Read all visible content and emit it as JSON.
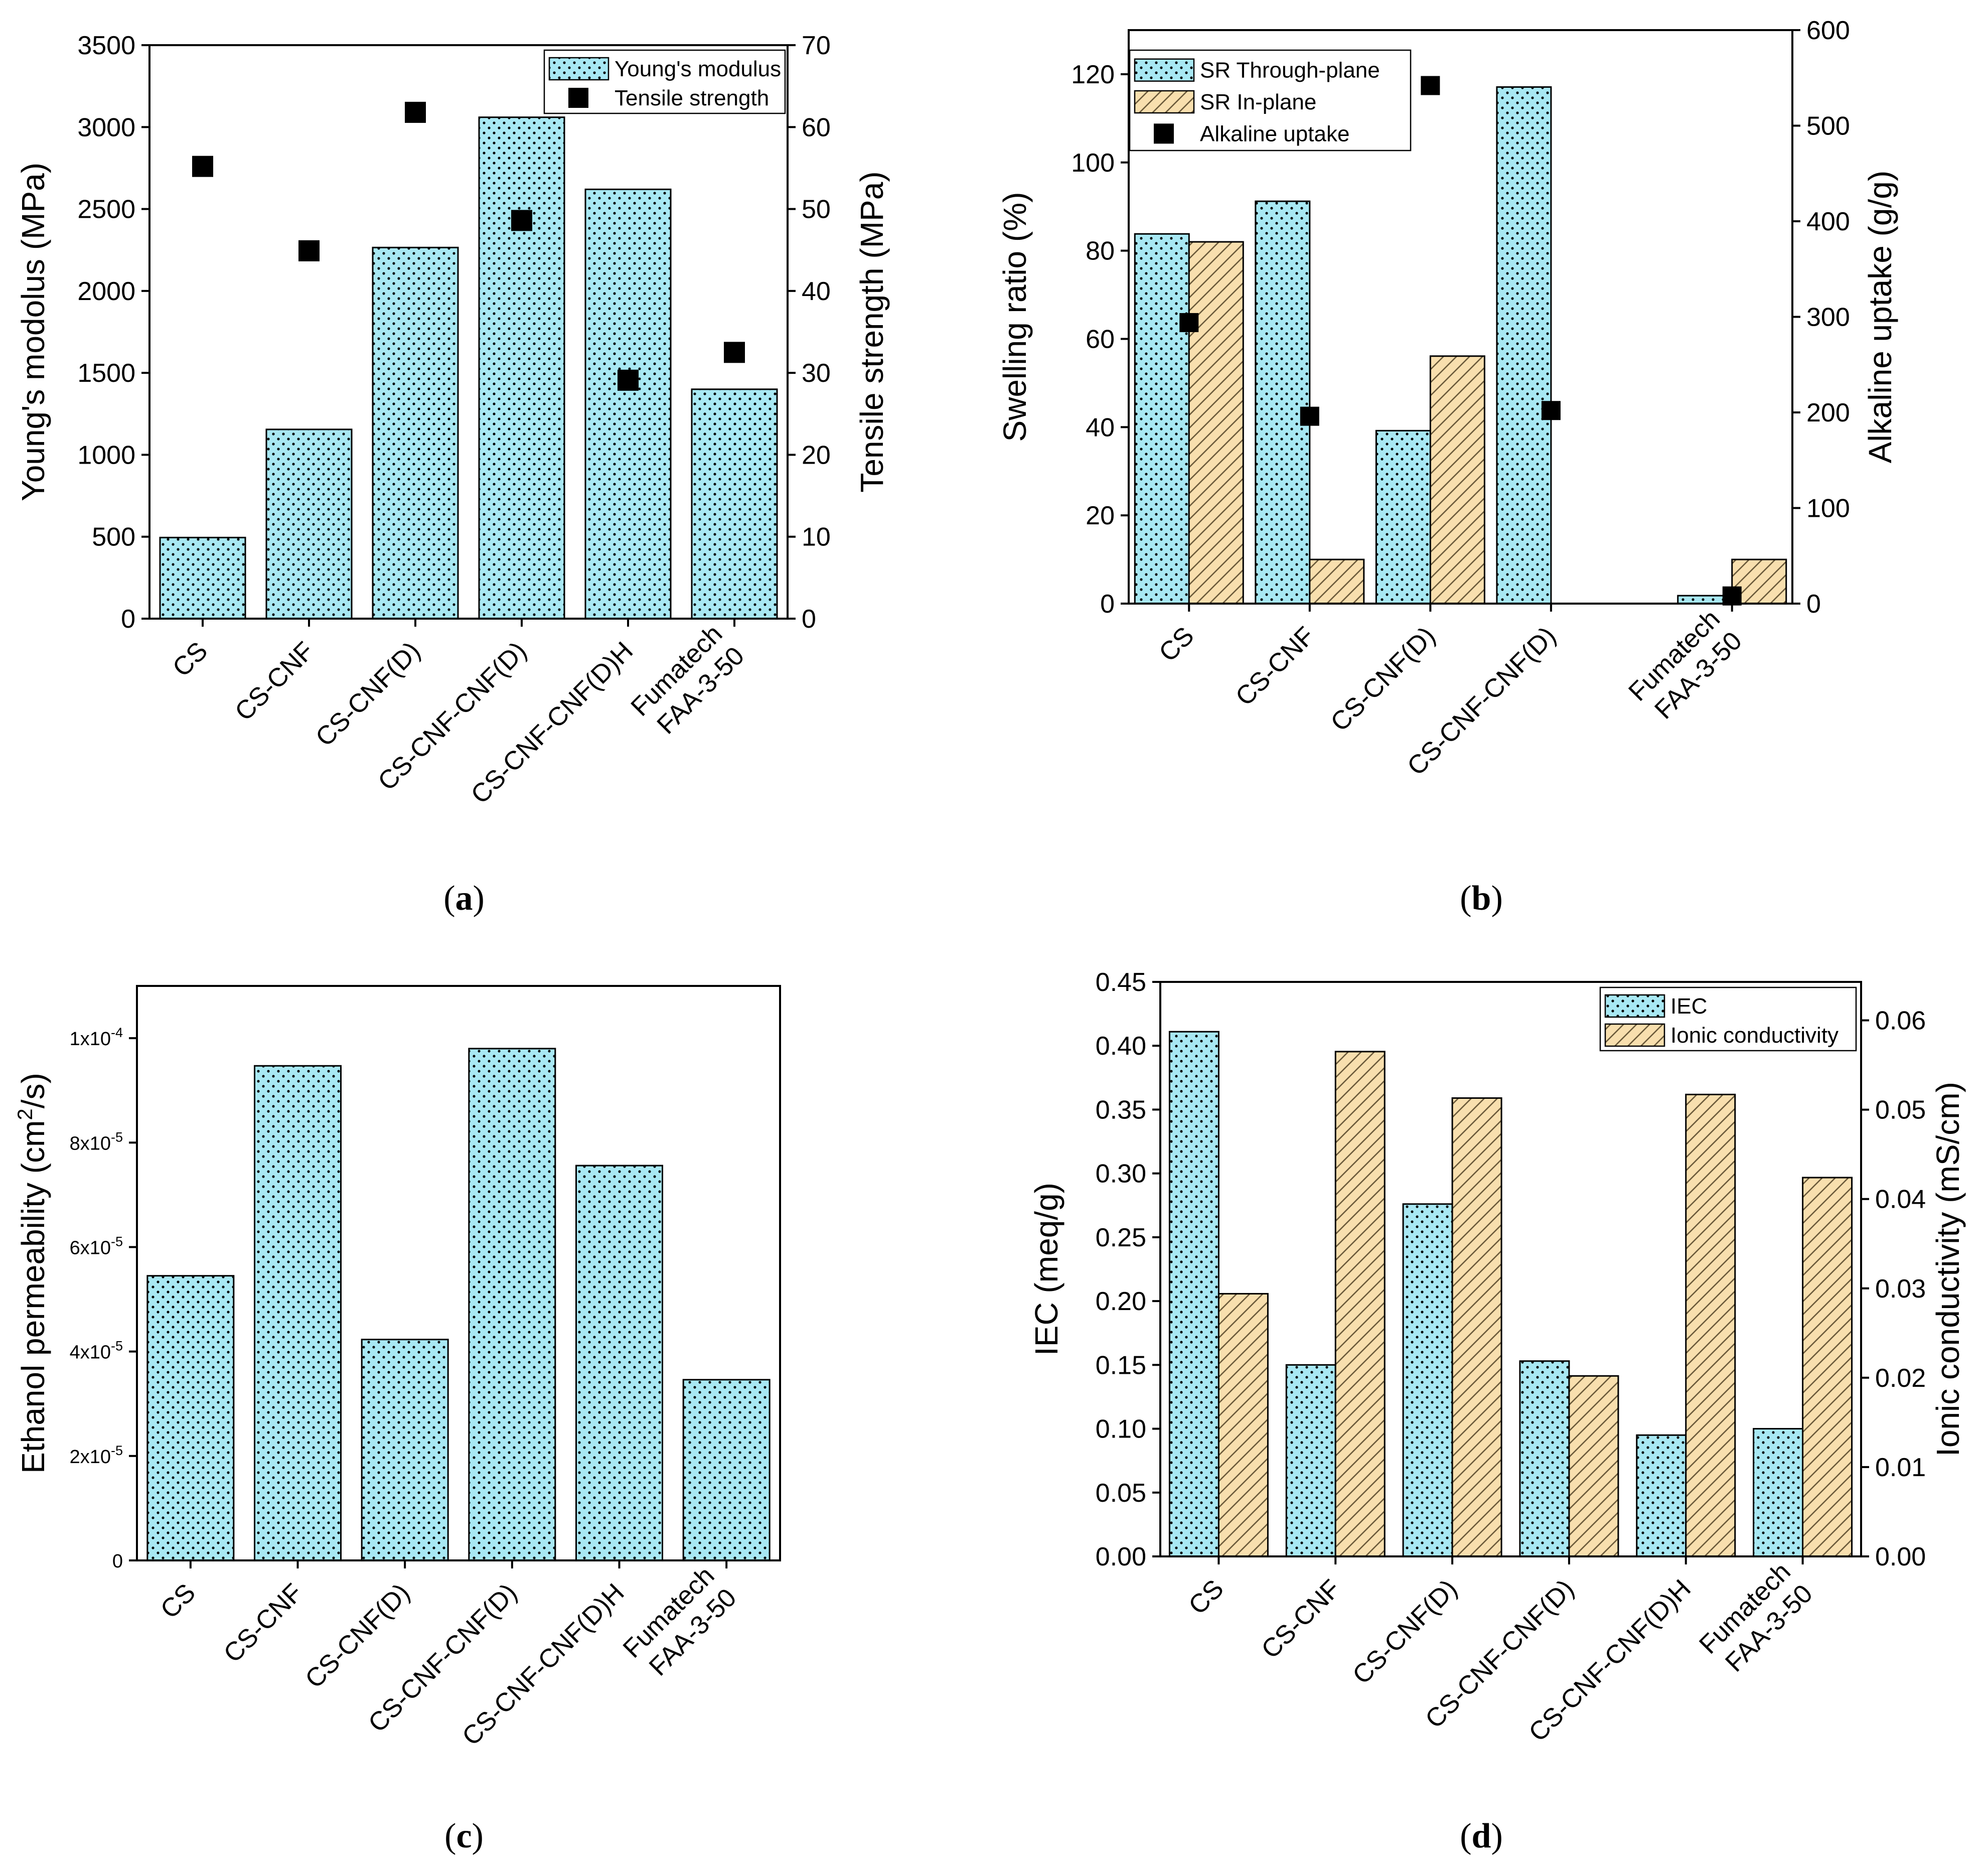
{
  "colors": {
    "cyan": "#a8e8f3",
    "tan": "#f8dfae",
    "dots": "#000000",
    "hatch": "#6b5a3a",
    "marker": "#000000"
  },
  "chart_data": [
    {
      "id": "a",
      "caption_label": "a",
      "type": "bar",
      "categories": [
        "CS",
        "CS-CNF",
        "CS-CNF(D)",
        "CS-CNF-CNF(D)",
        "CS-CNF-CNF(D)H",
        "Fumatech\nFAA-3-50"
      ],
      "ylabel": "Young's modolus (MPa)",
      "y2label": "Tensile strength (MPa)",
      "ylim": [
        0,
        3500
      ],
      "yticks": [
        0,
        500,
        1000,
        1500,
        2000,
        2500,
        3000,
        3500
      ],
      "y2lim": [
        0,
        70
      ],
      "y2ticks": [
        0,
        10,
        20,
        30,
        40,
        50,
        60,
        70
      ],
      "legend_position": "top-right",
      "series": [
        {
          "name": "Young's modulus",
          "kind": "bar",
          "axis": "left",
          "pattern": "dots",
          "values": [
            495,
            1155,
            2265,
            3060,
            2620,
            1400
          ]
        },
        {
          "name": "Tensile strength",
          "kind": "marker",
          "axis": "right",
          "values": [
            55.2,
            44.9,
            61.8,
            48.6,
            29.1,
            32.5
          ]
        }
      ]
    },
    {
      "id": "b",
      "caption_label": "b",
      "type": "bar",
      "categories": [
        "CS",
        "CS-CNF",
        "CS-CNF(D)",
        "CS-CNF-CNF(D)",
        "Fumatech\nFAA-3-50"
      ],
      "ylabel": "Swelling ratio (%)",
      "y2label": "Alkaline uptake (g/g)",
      "ylim": [
        0,
        130
      ],
      "yticks": [
        0,
        20,
        40,
        60,
        80,
        100,
        120
      ],
      "y2lim": [
        0,
        600
      ],
      "y2ticks": [
        0,
        100,
        200,
        300,
        400,
        500,
        600
      ],
      "legend_position": "top-left",
      "series": [
        {
          "name": "SR Through-plane",
          "kind": "bar",
          "axis": "left",
          "pattern": "dots",
          "values": [
            83.8,
            91.2,
            39.2,
            117.1,
            1.8
          ]
        },
        {
          "name": "SR In-plane",
          "kind": "bar",
          "axis": "left",
          "pattern": "hatch",
          "values": [
            82.0,
            10.0,
            56.1,
            null,
            10.0
          ]
        },
        {
          "name": "Alkaline uptake",
          "kind": "marker",
          "axis": "right",
          "values": [
            294,
            196,
            542,
            202,
            8
          ]
        }
      ]
    },
    {
      "id": "c",
      "caption_label": "c",
      "type": "bar",
      "categories": [
        "CS",
        "CS-CNF",
        "CS-CNF(D)",
        "CS-CNF-CNF(D)",
        "CS-CNF-CNF(D)H",
        "Fumatech\nFAA-3-50"
      ],
      "ylabel_main": "Ethanol permeability (cm",
      "ylabel_sup": "2",
      "ylabel_end": "/s)",
      "ylim": [
        0,
        0.00011
      ],
      "yticks": [
        0,
        2e-05,
        4e-05,
        6e-05,
        8e-05,
        0.0001
      ],
      "ytick_labels_main": [
        "0",
        "2x10",
        "4x10",
        "6x10",
        "8x10",
        "1x10"
      ],
      "ytick_labels_exp": [
        "",
        "-5",
        "-5",
        "-5",
        "-5",
        "-4"
      ],
      "series": [
        {
          "name": "Ethanol permeability",
          "kind": "bar",
          "axis": "left",
          "pattern": "dots",
          "values": [
            5.45e-05,
            9.47e-05,
            4.23e-05,
            9.8e-05,
            7.56e-05,
            3.46e-05
          ]
        }
      ]
    },
    {
      "id": "d",
      "caption_label": "d",
      "type": "bar",
      "categories": [
        "CS",
        "CS-CNF",
        "CS-CNF(D)",
        "CS-CNF-CNF(D)",
        "CS-CNF-CNF(D)H",
        "Fumatech\nFAA-3-50"
      ],
      "ylabel": "IEC (meq/g)",
      "y2label": "Ionic conductivity (mS/cm)",
      "ylim": [
        0,
        0.45
      ],
      "yticks": [
        "0.00",
        "0.05",
        "0.10",
        "0.15",
        "0.20",
        "0.25",
        "0.30",
        "0.35",
        "0.40",
        "0.45"
      ],
      "y2lim": [
        0,
        0.0643
      ],
      "y2ticks": [
        "0.00",
        "0.01",
        "0.02",
        "0.03",
        "0.04",
        "0.05",
        "0.06"
      ],
      "legend_position": "top-right",
      "series": [
        {
          "name": "IEC",
          "kind": "bar",
          "axis": "left",
          "pattern": "dots",
          "values": [
            0.411,
            0.15,
            0.276,
            0.153,
            0.095,
            0.1
          ]
        },
        {
          "name": "Ionic conductivity",
          "kind": "bar",
          "axis": "right",
          "pattern": "hatch",
          "values": [
            0.0294,
            0.0565,
            0.0513,
            0.0202,
            0.0517,
            0.0424
          ]
        }
      ]
    }
  ]
}
